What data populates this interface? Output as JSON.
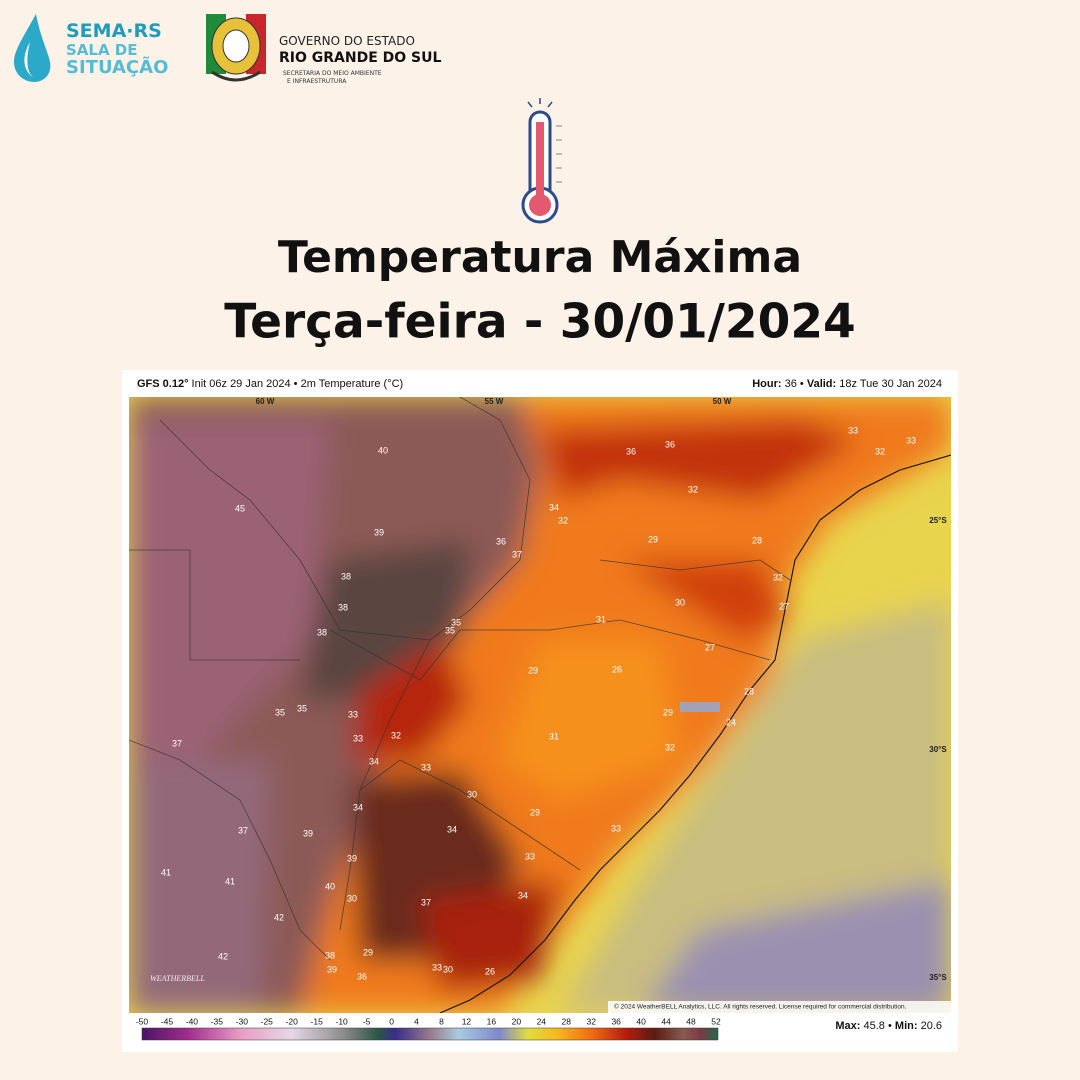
{
  "header": {
    "logo_left": {
      "line1": "SEMA·RS",
      "line2": "SALA DE",
      "line3": "SITUAÇÃO"
    },
    "logo_right": {
      "line1": "GOVERNO DO ESTADO",
      "line2": "RIO GRANDE DO SUL",
      "line3": "SECRETARIA DO MEIO AMBIENTE",
      "line4": "E INFRAESTRUTURA"
    }
  },
  "title": {
    "line1": "Temperatura Máxima",
    "line2": "Terça-feira - 30/01/2024"
  },
  "map": {
    "header_left": {
      "bold": "GFS 0.12°",
      "text": "Init 06z 29 Jan 2024 • 2m Temperature (°C)"
    },
    "header_right": {
      "hour_label": "Hour:",
      "hour": "36 •",
      "valid_label": "Valid:",
      "valid": "18z Tue 30 Jan 2024"
    },
    "grid_labels": [
      "60 W",
      "55 W",
      "50 W",
      "25°S",
      "30°S",
      "35°S"
    ],
    "watermark": "WEATHERBELL",
    "copyright": "© 2024 WeatherBELL Analytics, LLC. All rights reserved. License required for commercial distribution.",
    "point_labels": [
      "33",
      "33",
      "32",
      "36",
      "36",
      "40",
      "32",
      "45",
      "34",
      "32",
      "39",
      "36",
      "37",
      "29",
      "28",
      "38",
      "32",
      "38",
      "30",
      "31",
      "27",
      "35",
      "35",
      "38",
      "27",
      "29",
      "26",
      "28",
      "35",
      "35",
      "33",
      "29",
      "24",
      "32",
      "33",
      "31",
      "37",
      "32",
      "34",
      "33",
      "30",
      "34",
      "29",
      "37",
      "39",
      "34",
      "33",
      "39",
      "33",
      "41",
      "41",
      "40",
      "30",
      "37",
      "34",
      "42",
      "42",
      "38",
      "39",
      "36",
      "33",
      "30",
      "26",
      "29"
    ],
    "colorbar_ticks": [
      "-50",
      "-45",
      "-40",
      "-35",
      "-30",
      "-25",
      "-20",
      "-15",
      "-10",
      "-5",
      "0",
      "4",
      "8",
      "12",
      "16",
      "20",
      "24",
      "28",
      "32",
      "36",
      "40",
      "44",
      "48",
      "52"
    ],
    "footer": {
      "max_label": "Max:",
      "max": "45.8 •",
      "min_label": "Min:",
      "min": "20.6"
    }
  }
}
